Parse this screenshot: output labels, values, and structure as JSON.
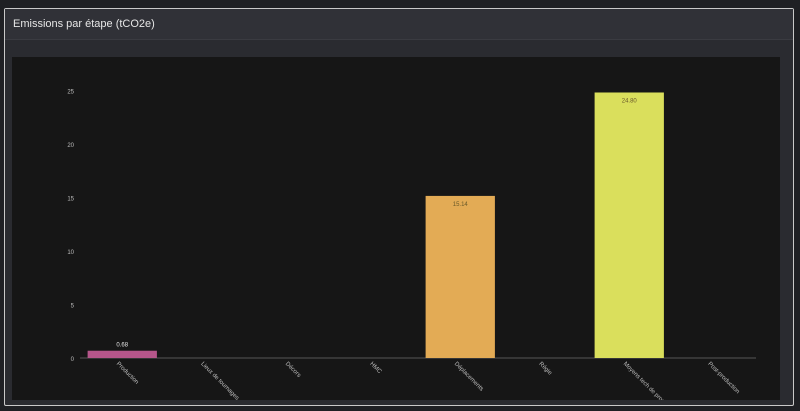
{
  "panel": {
    "title": "Emissions par étape (tCO2e)"
  },
  "colors": {
    "background": "#1f2024",
    "panel": "#2a2b30",
    "plot": "#161616",
    "axis_text": "#bdbdbd",
    "axis_line": "#555555"
  },
  "chart_data": {
    "type": "bar",
    "title": "Emissions par étape (tCO2e)",
    "xlabel": "",
    "ylabel": "",
    "categories": [
      "Production",
      "Lieux de tournages",
      "Décors",
      "HMC",
      "Déplacements",
      "Régie",
      "Moyens tech de prod",
      "Post-production"
    ],
    "values": [
      0.68,
      0,
      0,
      0,
      15.14,
      0,
      24.8,
      0
    ],
    "value_labels": [
      "0.68",
      "",
      "",
      "",
      "15.14",
      "",
      "24.80",
      ""
    ],
    "bar_colors": [
      "#b5568a",
      "#6b6b6b",
      "#6b6b6b",
      "#6b6b6b",
      "#e3ab55",
      "#6b6b6b",
      "#dadf5c",
      "#6b6b6b"
    ],
    "yticks": [
      0,
      5,
      10,
      15,
      20,
      25
    ],
    "ylim": [
      0,
      25.5
    ],
    "grid": false,
    "legend": "none"
  }
}
